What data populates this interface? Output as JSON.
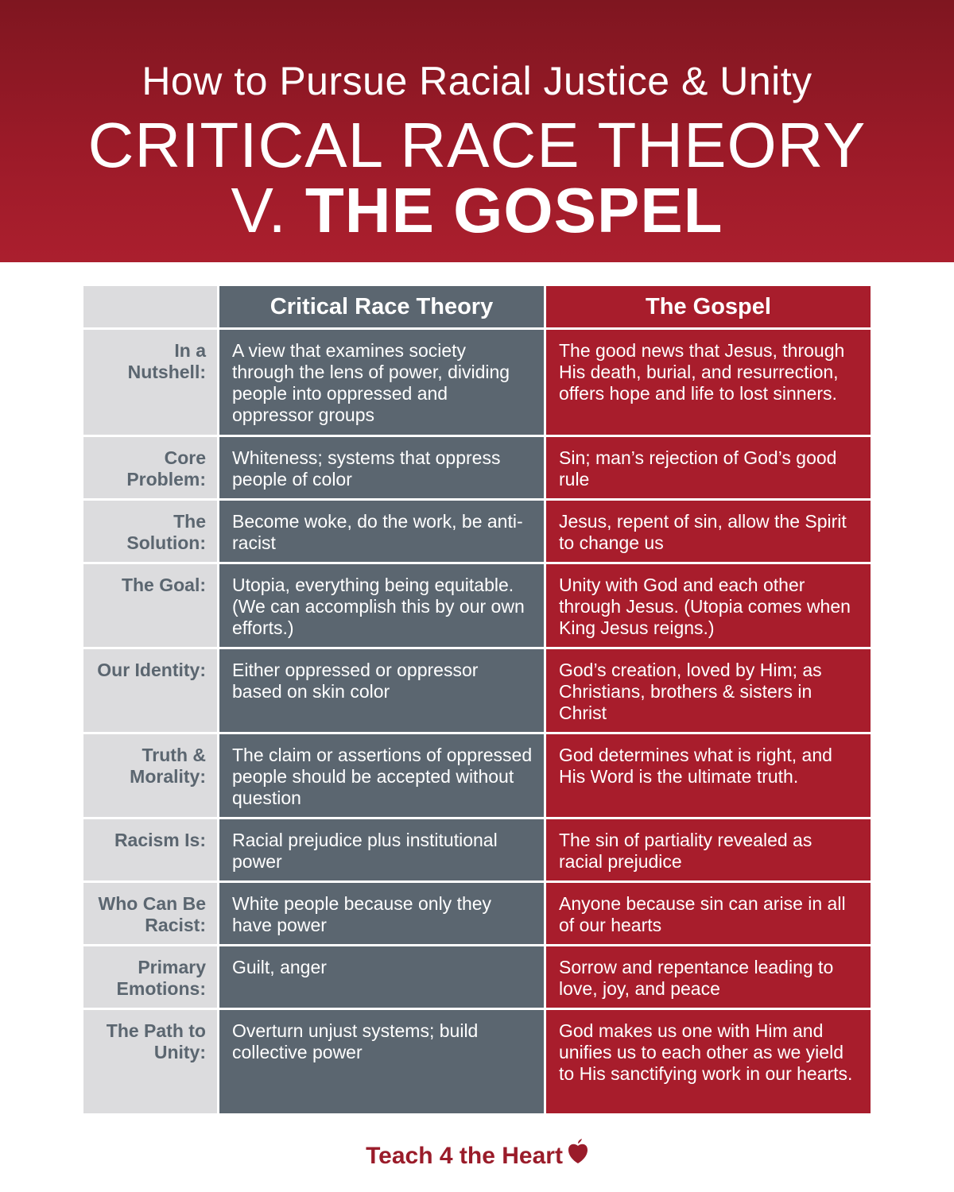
{
  "header": {
    "subtitle": "How to Pursue Racial Justice & Unity",
    "title_line1": "CRITICAL RACE THEORY",
    "title_v": "V. ",
    "title_gospel": "THE GOSPEL"
  },
  "table": {
    "columns": [
      "Critical Race Theory",
      "The Gospel"
    ],
    "rows": [
      {
        "label": "In a Nutshell:",
        "crt": "A view that examines society through the lens of power, dividing people into oppressed and oppressor groups",
        "gospel": "The good news that Jesus, through His death, burial, and resurrection, offers hope and life to lost sinners."
      },
      {
        "label": "Core Problem:",
        "crt": "Whiteness; systems that oppress people of color",
        "gospel": "Sin; man’s rejection of God’s good rule"
      },
      {
        "label": "The Solution:",
        "crt": "Become woke, do the work, be anti-racist",
        "gospel": "Jesus, repent of sin, allow the Spirit to change us"
      },
      {
        "label": "The Goal:",
        "crt": "Utopia, everything being equitable. (We can accomplish this by our own efforts.)",
        "gospel": "Unity with God and each other through Jesus. (Utopia comes when King Jesus reigns.)"
      },
      {
        "label": "Our Identity:",
        "crt": "Either oppressed or oppressor based on skin color",
        "gospel": "God’s creation, loved by Him; as Christians, brothers & sisters in Christ"
      },
      {
        "label": "Truth & Morality:",
        "crt": "The claim or assertions of oppressed people should be accepted without question",
        "gospel": "God determines what is right, and His Word is the ultimate truth."
      },
      {
        "label": "Racism Is:",
        "crt": "Racial prejudice plus institutional power",
        "gospel": "The sin of partiality revealed as racial prejudice"
      },
      {
        "label": "Who Can Be Racist:",
        "crt": "White people because only they have power",
        "gospel": "Anyone because sin can arise in all of our hearts"
      },
      {
        "label": "Primary Emotions:",
        "crt": "Guilt, anger",
        "gospel": "Sorrow and repentance leading to love, joy, and peace"
      },
      {
        "label": "The Path to Unity:",
        "crt": "Overturn unjust systems; build collective power",
        "gospel": "God makes us one with Him and unifies us to each other as we yield to His sanctifying work in our hearts."
      }
    ]
  },
  "footer": {
    "brand": "Teach 4 the Heart",
    "logo_icon": "apple-heart-icon",
    "brand_color": "#9a1c2a"
  },
  "colors": {
    "header_red": "#9b1a28",
    "crt_gray": "#5b6670",
    "gospel_red": "#a81d2c",
    "label_bg": "#dcdcde"
  }
}
